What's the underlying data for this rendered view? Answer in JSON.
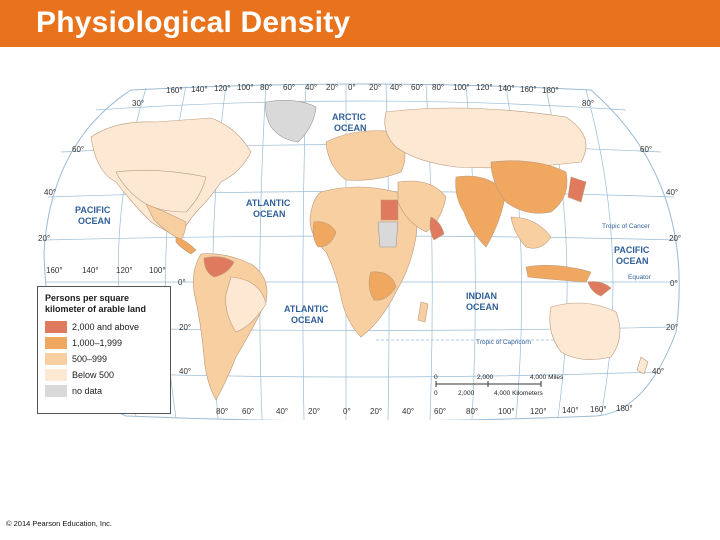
{
  "header": {
    "title": "Physiological Density"
  },
  "colors": {
    "title_bar": "#e8731c",
    "ocean": "#ffffff",
    "gridline": "#8fb7d8",
    "category_2000_above": "#e07a5f",
    "category_1000_1999": "#f0a860",
    "category_500_999": "#f8cfa0",
    "category_below_500": "#fde8d4",
    "category_no_data": "#d9d9d9"
  },
  "map": {
    "longitude_labels_top": [
      "160°",
      "140°",
      "120°",
      "100°",
      "80°",
      "60°",
      "40°",
      "20°",
      "0°",
      "20°",
      "40°",
      "60°",
      "80°",
      "100°",
      "120°",
      "140°",
      "160°",
      "180°"
    ],
    "longitude_labels_bottom": [
      "80°",
      "60°",
      "40°",
      "20°",
      "0°",
      "20°",
      "40°",
      "60°",
      "80°",
      "100°",
      "120°",
      "140°",
      "160°",
      "180°"
    ],
    "longitude_labels_pacific": [
      "160°",
      "140°",
      "120°",
      "100°"
    ],
    "latitude_labels_left": [
      "30°",
      "60°",
      "40°",
      "20°",
      "0°",
      "20°",
      "40°"
    ],
    "latitude_labels_right": [
      "80°",
      "60°",
      "40°",
      "20°",
      "0°",
      "20°",
      "40°"
    ],
    "oceans": {
      "arctic_1": "ARCTIC",
      "arctic_2": "OCEAN",
      "atlantic_n_1": "ATLANTIC",
      "atlantic_n_2": "OCEAN",
      "pacific_w_1": "PACIFIC",
      "pacific_w_2": "OCEAN",
      "atlantic_s_1": "ATLANTIC",
      "atlantic_s_2": "OCEAN",
      "indian_1": "INDIAN",
      "indian_2": "OCEAN",
      "pacific_e_1": "PACIFIC",
      "pacific_e_2": "OCEAN"
    },
    "lines": {
      "tropic_cancer": "Tropic of Cancer",
      "equator": "Equator",
      "tropic_capricorn": "Tropic of Capricorn"
    },
    "scale": {
      "miles_zero": "0",
      "miles_mid": "2,000",
      "miles_end": "4,000 Miles",
      "km_zero": "0",
      "km_mid": "2,000",
      "km_end": "4,000 Kilometers"
    }
  },
  "legend": {
    "title": "Persons per square kilometer of arable land",
    "items": [
      {
        "label": "2,000 and above",
        "color": "#e07a5f"
      },
      {
        "label": "1,000–1,999",
        "color": "#f0a860"
      },
      {
        "label": "500–999",
        "color": "#f8cfa0"
      },
      {
        "label": "Below 500",
        "color": "#fde8d4"
      },
      {
        "label": "no data",
        "color": "#d9d9d9"
      }
    ]
  },
  "footer": {
    "copyright": "© 2014 Pearson Education, Inc."
  }
}
